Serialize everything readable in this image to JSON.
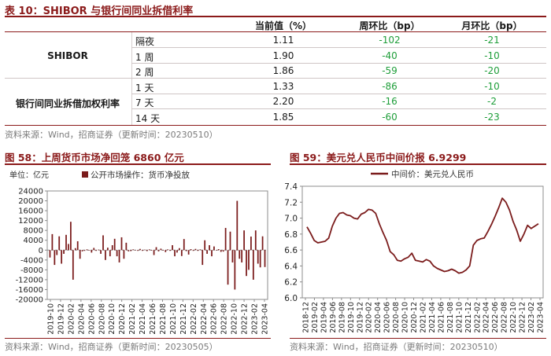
{
  "table": {
    "title": "表 10：SHIBOR 与银行间同业拆借利率",
    "headers": [
      "当前值（%）",
      "周环比（bp）",
      "月环比（bp）"
    ],
    "groups": [
      {
        "label": "SHIBOR",
        "rows": [
          {
            "term": "隔夜",
            "current": "1.11",
            "wow": "-102",
            "mom": "-21"
          },
          {
            "term": "1 周",
            "current": "1.90",
            "wow": "-40",
            "mom": "-10"
          },
          {
            "term": "2 周",
            "current": "1.86",
            "wow": "-59",
            "mom": "-20"
          }
        ]
      },
      {
        "label": "银行间同业拆借加权利率",
        "rows": [
          {
            "term": "1 天",
            "current": "1.33",
            "wow": "-86",
            "mom": "-10"
          },
          {
            "term": "7 天",
            "current": "2.20",
            "wow": "-16",
            "mom": "-2"
          },
          {
            "term": "14 天",
            "current": "1.85",
            "wow": "-60",
            "mom": "-23"
          }
        ]
      }
    ],
    "source": "资料来源：Wind，招商证券（更新时间：20230510）"
  },
  "colors": {
    "accent": "#8b1a1a",
    "positive_text": "#1f9e3a",
    "series": "#7b1c1c"
  },
  "chart_data": [
    {
      "type": "bar",
      "title": "图 58：上周货币市场净回笼 6860 亿元",
      "unit_label": "单位：亿元",
      "legend": "公开市场操作：货币净投放",
      "legend_position": "top",
      "y_ticks": [
        "24000",
        "20000",
        "16000",
        "12000",
        "8000",
        "4000",
        "0",
        "-4000",
        "-8000",
        "-12000",
        "-16000",
        "-20000"
      ],
      "ylim": [
        -20000,
        24000
      ],
      "x_ticks": [
        "2019-10",
        "2019-12",
        "2020-02",
        "2020-04",
        "2020-06",
        "2020-08",
        "2020-10",
        "2020-12",
        "2021-02",
        "2021-04",
        "2021-06",
        "2021-08",
        "2021-10",
        "2021-12",
        "2022-02",
        "2022-04",
        "2022-06",
        "2022-08",
        "2022-10",
        "2022-12",
        "2023-02",
        "2023-04"
      ],
      "values": [
        -3000,
        6500,
        -6000,
        -2000,
        5600,
        -5500,
        -1500,
        6200,
        2500,
        11500,
        -12000,
        800,
        3600,
        -3500,
        -500,
        -300,
        300,
        -200,
        -1000,
        900,
        -300,
        200,
        -1500,
        6000,
        -4000,
        1000,
        -2500,
        2000,
        4600,
        -2500,
        -5000,
        5200,
        -3500,
        3000,
        -500,
        -400,
        300,
        -100,
        -300,
        500,
        -300,
        200,
        -400,
        300,
        -200,
        -2000,
        1200,
        -500,
        600,
        -200,
        -800,
        300,
        -300,
        2000,
        -2500,
        -1000,
        800,
        -2400,
        4500,
        -400,
        -1800,
        400,
        -300,
        500,
        -300,
        300,
        -6000,
        4000,
        -1500,
        2000,
        -2500,
        1500,
        -200,
        400,
        -700,
        -600,
        9000,
        -14000,
        7500,
        -5000,
        -16000,
        20000,
        -3500,
        -5000,
        8000,
        -10500,
        -8000,
        5500,
        -12000,
        8000,
        -5500,
        -7000,
        5600,
        -6860
      ],
      "grid": false,
      "source": "资料来源：Wind，招商证券（更新时间：20230505）"
    },
    {
      "type": "line",
      "title": "图 59：美元兑人民币中间价报 6.9299",
      "legend": "中间价：美元兑人民币",
      "legend_position": "top",
      "y_ticks": [
        "7.4",
        "7.2",
        "7.0",
        "6.8",
        "6.6",
        "6.4",
        "6.2",
        "6.0"
      ],
      "ylim": [
        6.0,
        7.4
      ],
      "x_ticks": [
        "2018-12",
        "2019-02",
        "2019-04",
        "2019-06",
        "2019-08",
        "2019-10",
        "2019-12",
        "2020-02",
        "2020-04",
        "2020-06",
        "2020-08",
        "2020-10",
        "2020-12",
        "2021-02",
        "2021-04",
        "2021-06",
        "2021-08",
        "2021-10",
        "2021-12",
        "2022-02",
        "2022-04",
        "2022-06",
        "2022-08",
        "2022-10",
        "2022-12",
        "2023-02",
        "2023-04"
      ],
      "values": [
        6.89,
        6.81,
        6.72,
        6.69,
        6.7,
        6.71,
        6.75,
        6.9,
        7.0,
        7.06,
        7.07,
        7.04,
        7.03,
        7.0,
        6.99,
        7.05,
        7.07,
        7.11,
        7.1,
        7.06,
        6.93,
        6.82,
        6.72,
        6.58,
        6.54,
        6.47,
        6.46,
        6.49,
        6.51,
        6.56,
        6.47,
        6.46,
        6.45,
        6.48,
        6.46,
        6.4,
        6.37,
        6.35,
        6.33,
        6.34,
        6.36,
        6.34,
        6.31,
        6.32,
        6.35,
        6.4,
        6.66,
        6.72,
        6.74,
        6.75,
        6.83,
        6.92,
        7.02,
        7.13,
        7.25,
        7.2,
        7.1,
        6.96,
        6.85,
        6.71,
        6.8,
        6.91,
        6.87,
        6.9,
        6.93
      ],
      "grid": false,
      "source": "资料来源：Wind，招商证券（更新时间：20230510）"
    }
  ]
}
